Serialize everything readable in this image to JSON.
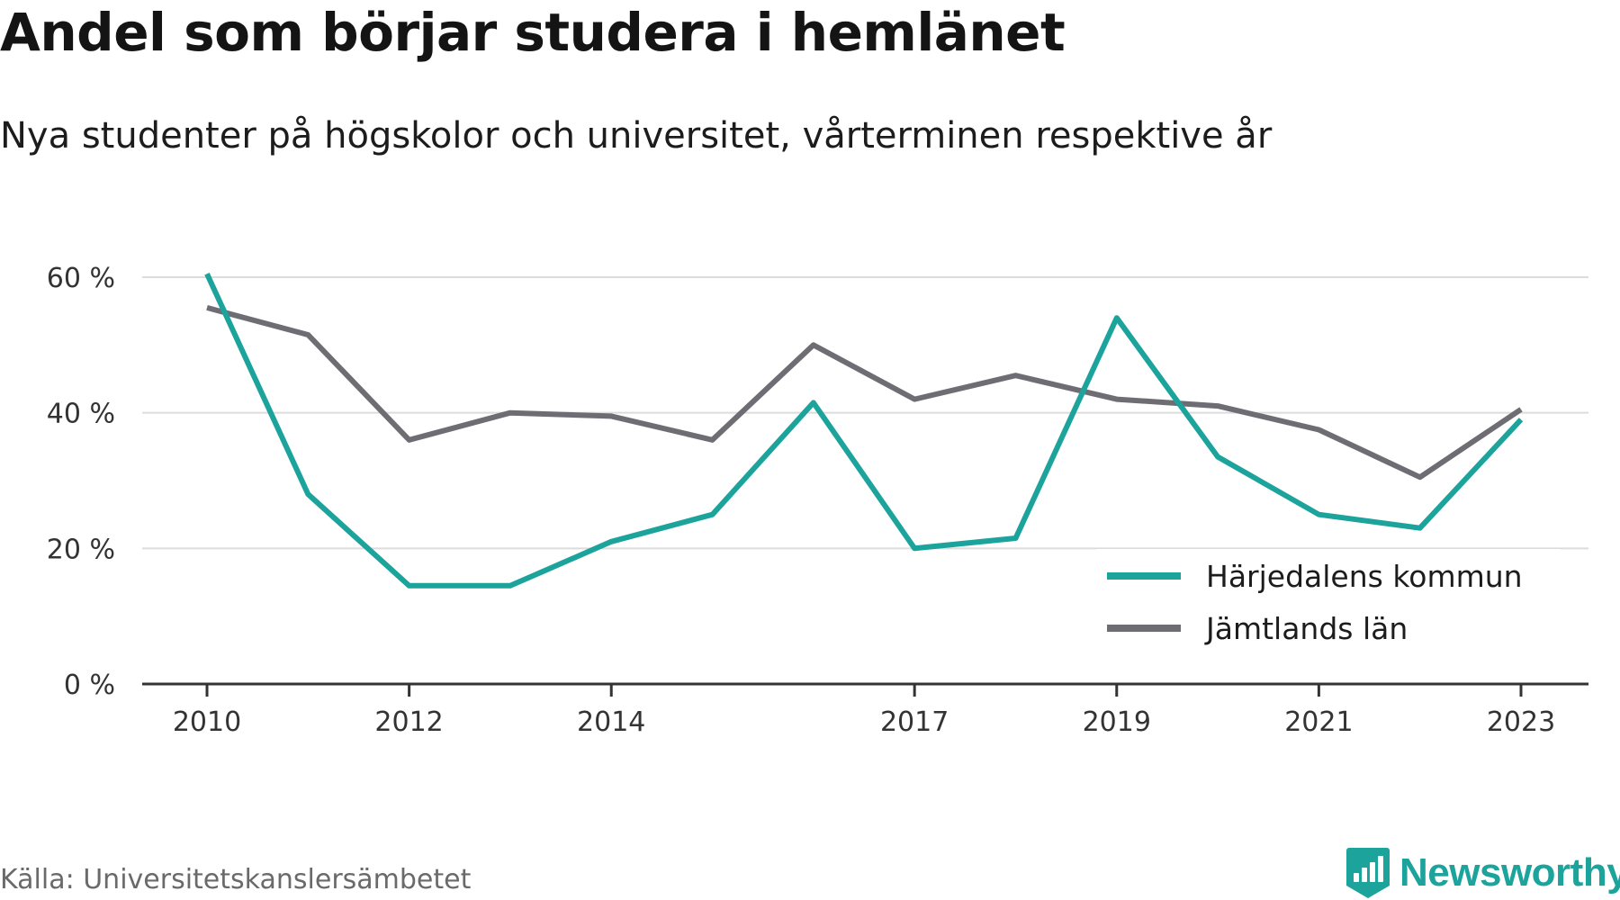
{
  "title": "Andel som börjar studera i hemlänet",
  "subtitle": "Nya studenter på högskolor och universitet, vårterminen respektive år",
  "source": "Källa: Universitetskanslersämbetet",
  "brand": {
    "name": "Newsworthy",
    "icon": "newsworthy-logo-icon",
    "color": "#1ba39c"
  },
  "chart_data": {
    "type": "line",
    "title": "Andel som börjar studera i hemlänet",
    "subtitle": "Nya studenter på högskolor och universitet, vårterminen respektive år",
    "xlabel": "",
    "ylabel": "",
    "x": [
      2010,
      2011,
      2012,
      2013,
      2014,
      2015,
      2016,
      2017,
      2018,
      2019,
      2020,
      2021,
      2022,
      2023
    ],
    "x_tick_labels": [
      "2010",
      "2012",
      "2014",
      "2017",
      "2019",
      "2021",
      "2023"
    ],
    "y_ticks": [
      0,
      20,
      40,
      60
    ],
    "y_tick_labels": [
      "0 %",
      "20 %",
      "40 %",
      "60 %"
    ],
    "ylim": [
      0,
      60
    ],
    "grid": true,
    "legend_position": "bottom-right",
    "series": [
      {
        "name": "Härjedalens kommun",
        "color": "#1ba39c",
        "values": [
          60.5,
          28,
          14.5,
          14.5,
          21,
          25,
          41.5,
          20,
          21.5,
          54,
          33.5,
          25,
          23,
          39
        ]
      },
      {
        "name": "Jämtlands län",
        "color": "#6e6d73",
        "values": [
          55.5,
          51.5,
          36,
          40,
          39.5,
          36,
          50,
          42,
          45.5,
          42,
          41,
          37.5,
          30.5,
          40.5
        ]
      }
    ]
  }
}
